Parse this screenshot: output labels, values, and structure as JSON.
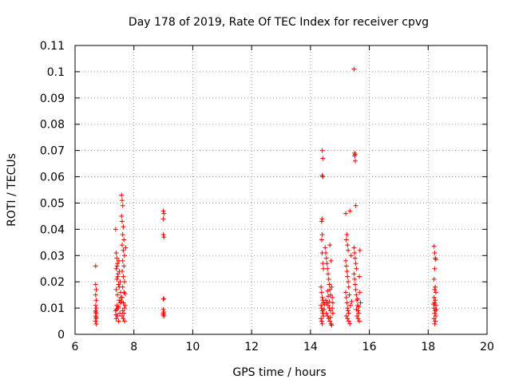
{
  "chart_data": {
    "type": "scatter",
    "title": "Day 178 of 2019, Rate Of TEC Index for receiver cpvg",
    "xlabel": "GPS time / hours",
    "ylabel": "ROTI / TECUs",
    "xlim": [
      6,
      20
    ],
    "ylim": [
      0,
      0.11
    ],
    "x_ticks": [
      6,
      8,
      10,
      12,
      14,
      16,
      18,
      20
    ],
    "y_ticks": [
      0,
      0.01,
      0.02,
      0.03,
      0.04,
      0.05,
      0.06,
      0.07,
      0.08,
      0.09,
      0.1,
      0.11
    ],
    "x_tick_labels": [
      "6",
      "8",
      "10",
      "12",
      "14",
      "16",
      "18",
      "20"
    ],
    "y_tick_labels": [
      "0",
      "0.01",
      "0.02",
      "0.03",
      "0.04",
      "0.05",
      "0.06",
      "0.07",
      "0.08",
      "0.09",
      "0.1",
      "0.11"
    ],
    "grid": true,
    "marker": "+",
    "marker_color": "#ff0000",
    "series": [
      {
        "points": [
          [
            6.7,
            0.026
          ],
          [
            6.7,
            0.019
          ],
          [
            6.72,
            0.017
          ],
          [
            6.7,
            0.015
          ],
          [
            6.72,
            0.013
          ],
          [
            6.7,
            0.011
          ],
          [
            6.72,
            0.01
          ],
          [
            6.7,
            0.009
          ],
          [
            6.72,
            0.008
          ],
          [
            6.7,
            0.007
          ],
          [
            6.72,
            0.006
          ],
          [
            6.7,
            0.005
          ],
          [
            6.72,
            0.004
          ],
          [
            6.7,
            0.0085
          ],
          [
            6.72,
            0.0065
          ],
          [
            7.38,
            0.04
          ],
          [
            7.4,
            0.031
          ],
          [
            7.42,
            0.029
          ],
          [
            7.44,
            0.027
          ],
          [
            7.4,
            0.025
          ],
          [
            7.46,
            0.023
          ],
          [
            7.42,
            0.021
          ],
          [
            7.48,
            0.019
          ],
          [
            7.4,
            0.017
          ],
          [
            7.44,
            0.015
          ],
          [
            7.5,
            0.013
          ],
          [
            7.42,
            0.011
          ],
          [
            7.46,
            0.01
          ],
          [
            7.38,
            0.009
          ],
          [
            7.52,
            0.008
          ],
          [
            7.44,
            0.007
          ],
          [
            7.4,
            0.006
          ],
          [
            7.48,
            0.005
          ],
          [
            7.54,
            0.012
          ],
          [
            7.56,
            0.014
          ],
          [
            7.5,
            0.018
          ],
          [
            7.45,
            0.022
          ],
          [
            7.41,
            0.0095
          ],
          [
            7.39,
            0.0075
          ],
          [
            7.47,
            0.0105
          ],
          [
            7.53,
            0.02
          ],
          [
            7.55,
            0.016
          ],
          [
            7.43,
            0.026
          ],
          [
            7.51,
            0.024
          ],
          [
            7.49,
            0.028
          ],
          [
            7.58,
            0.053
          ],
          [
            7.6,
            0.051
          ],
          [
            7.62,
            0.049
          ],
          [
            7.58,
            0.045
          ],
          [
            7.6,
            0.043
          ],
          [
            7.64,
            0.041
          ],
          [
            7.62,
            0.038
          ],
          [
            7.66,
            0.036
          ],
          [
            7.6,
            0.034
          ],
          [
            7.64,
            0.032
          ],
          [
            7.68,
            0.03
          ],
          [
            7.62,
            0.028
          ],
          [
            7.66,
            0.026
          ],
          [
            7.6,
            0.024
          ],
          [
            7.64,
            0.022
          ],
          [
            7.68,
            0.02
          ],
          [
            7.62,
            0.018
          ],
          [
            7.66,
            0.016
          ],
          [
            7.6,
            0.014
          ],
          [
            7.64,
            0.012
          ],
          [
            7.68,
            0.01
          ],
          [
            7.62,
            0.009
          ],
          [
            7.66,
            0.008
          ],
          [
            7.6,
            0.007
          ],
          [
            7.64,
            0.006
          ],
          [
            7.68,
            0.005
          ],
          [
            7.7,
            0.011
          ],
          [
            7.58,
            0.0125
          ],
          [
            7.7,
            0.0155
          ],
          [
            7.72,
            0.033
          ],
          [
            9.0,
            0.047
          ],
          [
            9.02,
            0.046
          ],
          [
            9.0,
            0.044
          ],
          [
            9.0,
            0.038
          ],
          [
            9.02,
            0.037
          ],
          [
            9.0,
            0.0135
          ],
          [
            9.02,
            0.0135
          ],
          [
            9.0,
            0.0095
          ],
          [
            9.02,
            0.0085
          ],
          [
            9.0,
            0.0075
          ],
          [
            9.02,
            0.007
          ],
          [
            9.0,
            0.008
          ],
          [
            14.4,
            0.07
          ],
          [
            14.42,
            0.067
          ],
          [
            14.42,
            0.06
          ],
          [
            14.4,
            0.0605
          ],
          [
            14.38,
            0.043
          ],
          [
            14.4,
            0.044
          ],
          [
            14.4,
            0.038
          ],
          [
            14.38,
            0.036
          ],
          [
            14.4,
            0.031
          ],
          [
            14.42,
            0.027
          ],
          [
            14.44,
            0.025
          ],
          [
            14.36,
            0.018
          ],
          [
            14.38,
            0.016
          ],
          [
            14.4,
            0.014
          ],
          [
            14.42,
            0.013
          ],
          [
            14.44,
            0.012
          ],
          [
            14.36,
            0.011
          ],
          [
            14.38,
            0.01
          ],
          [
            14.4,
            0.009
          ],
          [
            14.42,
            0.008
          ],
          [
            14.44,
            0.007
          ],
          [
            14.36,
            0.006
          ],
          [
            14.38,
            0.005
          ],
          [
            14.4,
            0.004
          ],
          [
            14.46,
            0.0095
          ],
          [
            14.48,
            0.0115
          ],
          [
            14.5,
            0.033
          ],
          [
            14.52,
            0.031
          ],
          [
            14.54,
            0.029
          ],
          [
            14.56,
            0.027
          ],
          [
            14.58,
            0.025
          ],
          [
            14.6,
            0.023
          ],
          [
            14.62,
            0.021
          ],
          [
            14.64,
            0.019
          ],
          [
            14.66,
            0.017
          ],
          [
            14.68,
            0.015
          ],
          [
            14.52,
            0.013
          ],
          [
            14.56,
            0.012
          ],
          [
            14.6,
            0.011
          ],
          [
            14.64,
            0.01
          ],
          [
            14.68,
            0.009
          ],
          [
            14.54,
            0.008
          ],
          [
            14.58,
            0.007
          ],
          [
            14.62,
            0.006
          ],
          [
            14.66,
            0.005
          ],
          [
            14.7,
            0.004
          ],
          [
            14.72,
            0.0035
          ],
          [
            14.66,
            0.034
          ],
          [
            14.7,
            0.028
          ],
          [
            14.72,
            0.018
          ],
          [
            14.74,
            0.014
          ],
          [
            14.6,
            0.0145
          ],
          [
            14.64,
            0.0125
          ],
          [
            14.58,
            0.0165
          ],
          [
            14.74,
            0.01
          ],
          [
            14.76,
            0.008
          ],
          [
            14.68,
            0.0065
          ],
          [
            14.76,
            0.012
          ],
          [
            15.2,
            0.046
          ],
          [
            15.22,
            0.036
          ],
          [
            15.24,
            0.038
          ],
          [
            15.26,
            0.034
          ],
          [
            15.28,
            0.032
          ],
          [
            15.2,
            0.028
          ],
          [
            15.22,
            0.026
          ],
          [
            15.24,
            0.024
          ],
          [
            15.26,
            0.022
          ],
          [
            15.28,
            0.02
          ],
          [
            15.3,
            0.018
          ],
          [
            15.2,
            0.016
          ],
          [
            15.22,
            0.014
          ],
          [
            15.24,
            0.012
          ],
          [
            15.26,
            0.01
          ],
          [
            15.28,
            0.009
          ],
          [
            15.3,
            0.008
          ],
          [
            15.22,
            0.007
          ],
          [
            15.26,
            0.006
          ],
          [
            15.3,
            0.005
          ],
          [
            15.34,
            0.047
          ],
          [
            15.34,
            0.004
          ],
          [
            15.32,
            0.015
          ],
          [
            15.36,
            0.011
          ],
          [
            15.38,
            0.03
          ],
          [
            15.4,
            0.0125
          ],
          [
            15.48,
            0.101
          ],
          [
            15.5,
            0.069
          ],
          [
            15.52,
            0.0685
          ],
          [
            15.5,
            0.068
          ],
          [
            15.52,
            0.066
          ],
          [
            15.54,
            0.049
          ],
          [
            15.48,
            0.033
          ],
          [
            15.5,
            0.031
          ],
          [
            15.52,
            0.029
          ],
          [
            15.54,
            0.027
          ],
          [
            15.56,
            0.025
          ],
          [
            15.48,
            0.023
          ],
          [
            15.5,
            0.021
          ],
          [
            15.52,
            0.019
          ],
          [
            15.54,
            0.017
          ],
          [
            15.56,
            0.015
          ],
          [
            15.58,
            0.013
          ],
          [
            15.6,
            0.011
          ],
          [
            15.62,
            0.009
          ],
          [
            15.64,
            0.008
          ],
          [
            15.58,
            0.007
          ],
          [
            15.62,
            0.006
          ],
          [
            15.66,
            0.005
          ],
          [
            15.68,
            0.032
          ],
          [
            15.66,
            0.022
          ],
          [
            15.68,
            0.016
          ],
          [
            15.7,
            0.012
          ],
          [
            15.64,
            0.0105
          ],
          [
            15.6,
            0.0135
          ],
          [
            15.56,
            0.0095
          ],
          [
            18.2,
            0.0335
          ],
          [
            18.22,
            0.031
          ],
          [
            18.24,
            0.029
          ],
          [
            18.26,
            0.0285
          ],
          [
            18.22,
            0.025
          ],
          [
            18.2,
            0.021
          ],
          [
            18.24,
            0.018
          ],
          [
            18.22,
            0.017
          ],
          [
            18.26,
            0.016
          ],
          [
            18.2,
            0.014
          ],
          [
            18.24,
            0.013
          ],
          [
            18.22,
            0.012
          ],
          [
            18.26,
            0.011
          ],
          [
            18.2,
            0.01
          ],
          [
            18.24,
            0.009
          ],
          [
            18.22,
            0.008
          ],
          [
            18.26,
            0.007
          ],
          [
            18.2,
            0.006
          ],
          [
            18.24,
            0.005
          ],
          [
            18.22,
            0.004
          ],
          [
            18.18,
            0.0115
          ],
          [
            18.28,
            0.0095
          ]
        ]
      }
    ]
  }
}
